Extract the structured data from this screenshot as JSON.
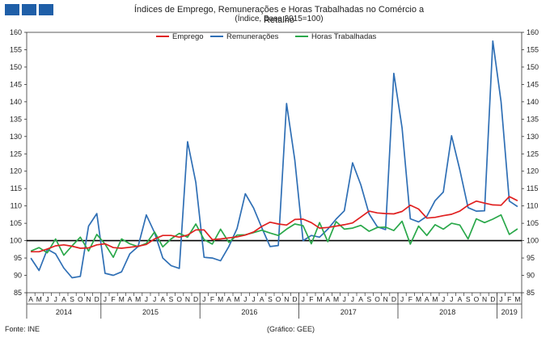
{
  "header": {
    "title": "Índices de Emprego, Remunerações e Horas Trabalhadas no Comércio a Retalho",
    "subtitle": "(Índice, Base 2015=100)"
  },
  "footer": {
    "source": "Fonte: INE",
    "credit": "(Gráfico: GEE)"
  },
  "colors": {
    "logo": "#1f5fa8",
    "emprego": "#e02020",
    "remuneracoes": "#2f6fb5",
    "horas": "#2aa84a",
    "baseline": "#000000"
  },
  "chart_data": {
    "type": "line",
    "ylim": [
      85,
      160
    ],
    "yticks": [
      85,
      90,
      95,
      100,
      105,
      110,
      115,
      120,
      125,
      130,
      135,
      140,
      145,
      150,
      155,
      160
    ],
    "reference_line": 100,
    "grid": false,
    "legend_position": "top",
    "month_labels": [
      "A",
      "M",
      "J",
      "J",
      "A",
      "S",
      "O",
      "N",
      "D",
      "J",
      "F",
      "M",
      "A",
      "M",
      "J",
      "J",
      "A",
      "S",
      "O",
      "N",
      "D",
      "J",
      "F",
      "M",
      "A",
      "M",
      "J",
      "J",
      "A",
      "S",
      "O",
      "N",
      "D",
      "J",
      "F",
      "M",
      "A",
      "M",
      "J",
      "J",
      "A",
      "S",
      "O",
      "N",
      "D",
      "J",
      "F",
      "M",
      "A",
      "M",
      "J",
      "J",
      "A",
      "S",
      "O",
      "N",
      "D",
      "J",
      "F",
      "M"
    ],
    "years": [
      {
        "label": "2014",
        "start": 0,
        "end": 8
      },
      {
        "label": "2015",
        "start": 9,
        "end": 20
      },
      {
        "label": "2016",
        "start": 21,
        "end": 32
      },
      {
        "label": "2017",
        "start": 33,
        "end": 44
      },
      {
        "label": "2018",
        "start": 45,
        "end": 56
      },
      {
        "label": "2019",
        "start": 57,
        "end": 59
      }
    ],
    "series": [
      {
        "name": "Emprego",
        "color": "#e02020",
        "values": [
          96.8,
          96.8,
          97.6,
          98.5,
          98.8,
          98.4,
          97.8,
          97.9,
          98.8,
          99.1,
          98.0,
          97.8,
          98.1,
          98.4,
          98.9,
          100.5,
          101.5,
          101.5,
          101.0,
          101.6,
          103.1,
          103.1,
          100.3,
          100.5,
          100.8,
          101.1,
          101.6,
          102.5,
          104.1,
          105.3,
          104.8,
          104.5,
          106.1,
          106.2,
          105.2,
          103.6,
          103.8,
          104.2,
          104.6,
          105.1,
          106.8,
          108.5,
          108.0,
          107.8,
          107.7,
          108.4,
          110.2,
          109.1,
          106.5,
          106.7,
          107.2,
          107.6,
          108.5,
          110.2,
          111.4,
          110.8,
          110.3,
          110.2,
          112.7,
          111.5
        ]
      },
      {
        "name": "Remunerações",
        "color": "#2f6fb5",
        "values": [
          95.0,
          91.4,
          97.5,
          96.2,
          92.1,
          89.3,
          89.7,
          104.2,
          107.8,
          90.6,
          90.0,
          91.0,
          96.2,
          98.3,
          107.4,
          102.3,
          95.0,
          92.8,
          92.0,
          128.5,
          116.8,
          95.2,
          95.0,
          94.2,
          98.3,
          103.5,
          113.5,
          109.4,
          103.7,
          98.3,
          98.6,
          139.5,
          123.2,
          100.0,
          101.5,
          101.0,
          103.3,
          106.2,
          108.6,
          122.4,
          116.1,
          107.7,
          104.0,
          103.2,
          148.2,
          132.5,
          106.3,
          105.4,
          107.0,
          111.5,
          114.0,
          130.2,
          120.4,
          109.5,
          108.5,
          108.6,
          157.5,
          140.0,
          111.4,
          109.8
        ]
      },
      {
        "name": "Horas Trabalhadas",
        "color": "#2aa84a",
        "values": [
          97.0,
          98.0,
          96.5,
          100.5,
          95.8,
          98.5,
          101.0,
          97.0,
          101.8,
          99.0,
          95.2,
          100.5,
          99.1,
          98.3,
          99.2,
          102.5,
          98.2,
          100.5,
          102.1,
          101.0,
          104.8,
          100.3,
          99.0,
          103.3,
          99.5,
          101.6,
          101.7,
          102.3,
          103.0,
          102.2,
          101.5,
          103.3,
          104.8,
          104.3,
          99.1,
          105.2,
          99.7,
          105.5,
          103.3,
          103.6,
          104.4,
          102.7,
          103.8,
          103.9,
          102.9,
          105.6,
          99.0,
          104.2,
          101.5,
          104.6,
          103.3,
          105.0,
          104.5,
          100.5,
          106.3,
          105.2,
          106.2,
          107.4,
          101.8,
          103.4
        ]
      }
    ]
  }
}
